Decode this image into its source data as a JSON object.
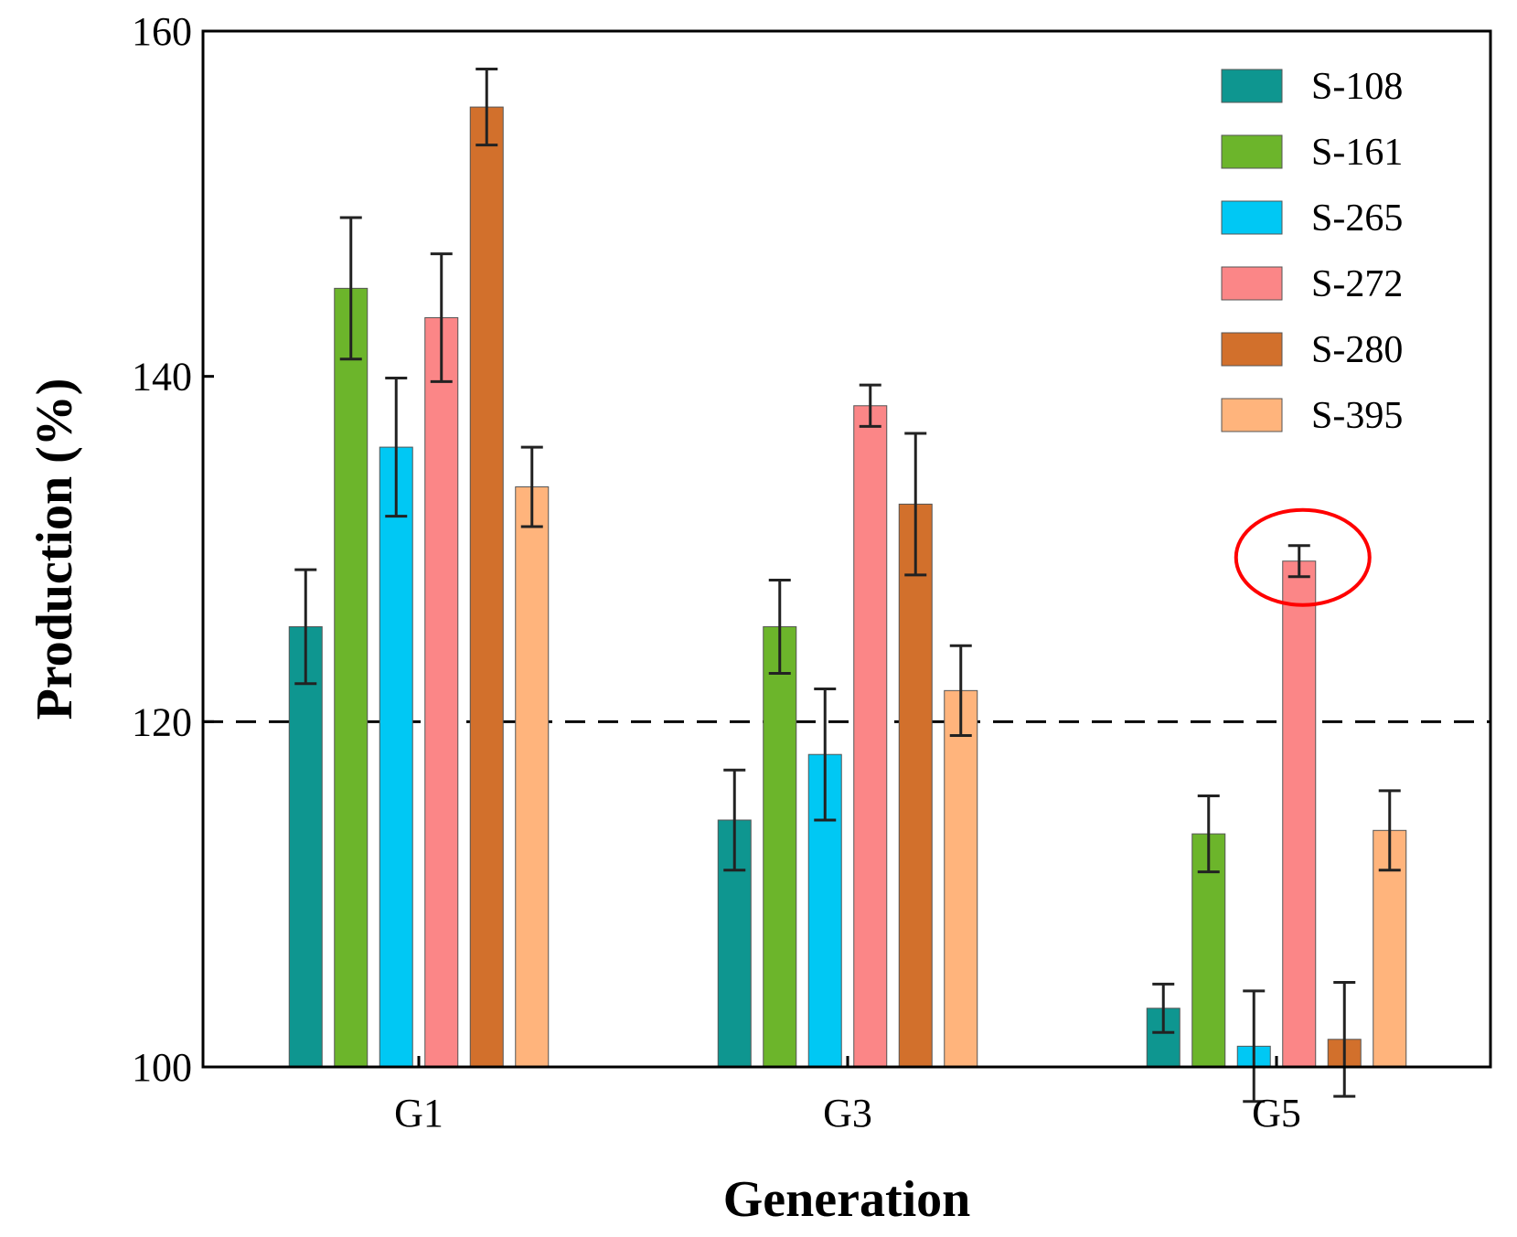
{
  "chart_data": {
    "type": "bar",
    "xlabel": "Generation",
    "ylabel": "Production (%)",
    "ylim": [
      100,
      160
    ],
    "yticks": [
      100,
      120,
      140,
      160
    ],
    "categories": [
      "G1",
      "G3",
      "G5"
    ],
    "reference_line": {
      "y": 120,
      "style": "dashed"
    },
    "legend_position": "top-right",
    "series": [
      {
        "name": "S-108",
        "color": "#0e9690",
        "values": [
          125.5,
          114.3,
          103.4
        ],
        "errors": [
          3.3,
          2.9,
          1.4
        ]
      },
      {
        "name": "S-161",
        "color": "#6cb52b",
        "values": [
          145.1,
          125.5,
          113.5
        ],
        "errors": [
          4.1,
          2.7,
          2.2
        ]
      },
      {
        "name": "S-265",
        "color": "#00c8f4",
        "values": [
          135.9,
          118.1,
          101.2
        ],
        "errors": [
          4.0,
          3.8,
          3.2
        ]
      },
      {
        "name": "S-272",
        "color": "#fb8687",
        "values": [
          143.4,
          138.3,
          129.3
        ],
        "errors": [
          3.7,
          1.2,
          0.9
        ]
      },
      {
        "name": "S-280",
        "color": "#d2702c",
        "values": [
          155.6,
          132.6,
          101.6
        ],
        "errors": [
          2.2,
          4.1,
          3.3
        ]
      },
      {
        "name": "S-395",
        "color": "#ffb47c",
        "values": [
          133.6,
          121.8,
          113.7
        ],
        "errors": [
          2.3,
          2.6,
          2.3
        ]
      }
    ],
    "highlight": {
      "series": "S-272",
      "category": "G5",
      "shape": "ellipse",
      "color": "#ff0000"
    }
  }
}
